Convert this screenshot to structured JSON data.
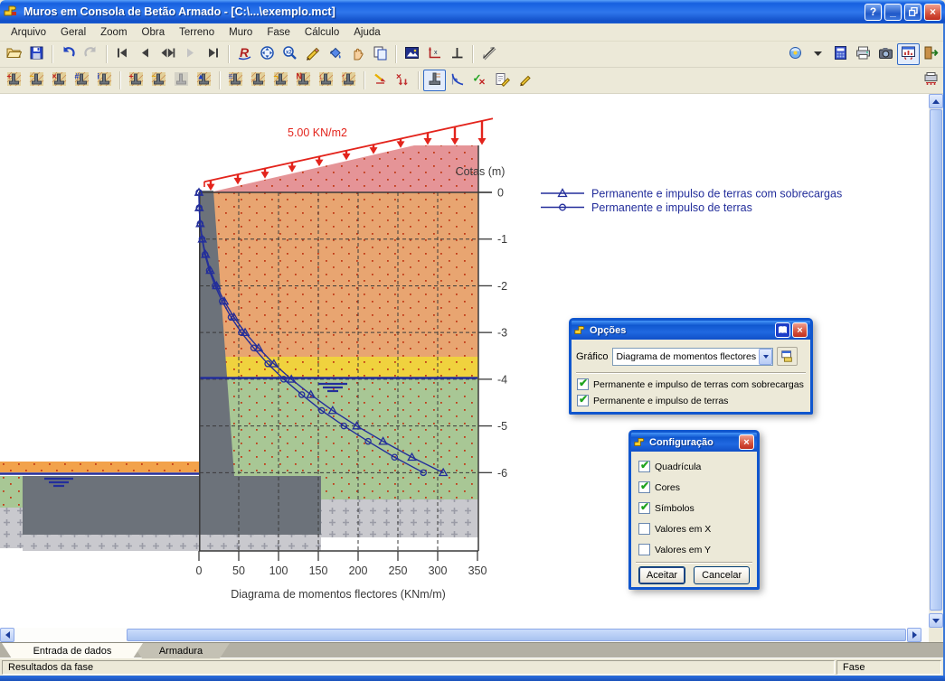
{
  "window": {
    "title": "Muros em Consola de Betão Armado - [C:\\...\\exemplo.mct]",
    "buttons": {
      "help": "?",
      "minimize": "_",
      "restore": "restore",
      "close": "×"
    }
  },
  "menu": {
    "items": [
      "Arquivo",
      "Geral",
      "Zoom",
      "Obra",
      "Terreno",
      "Muro",
      "Fase",
      "Cálculo",
      "Ajuda"
    ]
  },
  "toolbar_main": {
    "icons": [
      {
        "name": "open-file"
      },
      {
        "name": "save-file"
      },
      {
        "sep": true
      },
      {
        "name": "undo"
      },
      {
        "name": "redo",
        "disabled": true
      },
      {
        "sep": true
      },
      {
        "name": "nav-first"
      },
      {
        "name": "nav-prev"
      },
      {
        "name": "nav-phase"
      },
      {
        "name": "nav-next",
        "disabled": true
      },
      {
        "name": "nav-last"
      },
      {
        "sep": true
      },
      {
        "name": "redraw"
      },
      {
        "name": "zoom-extents"
      },
      {
        "name": "zoom-window"
      },
      {
        "name": "measure-pencil"
      },
      {
        "name": "fill-bucket"
      },
      {
        "name": "pan-hand"
      },
      {
        "name": "copy-view"
      },
      {
        "sep": true
      },
      {
        "name": "image-export"
      },
      {
        "name": "axes"
      },
      {
        "name": "orthogonal"
      },
      {
        "sep": true
      },
      {
        "name": "dimension"
      }
    ],
    "right_icons": [
      {
        "name": "render-options"
      },
      {
        "name": "dropdown-caret"
      },
      {
        "name": "calculator"
      },
      {
        "name": "print"
      },
      {
        "name": "snapshot-camera"
      },
      {
        "name": "phase-diagram-window",
        "pressed": true
      },
      {
        "name": "exit-door"
      }
    ]
  },
  "toolbar_wall": {
    "icons": [
      {
        "name": "wall-new",
        "badge": "+",
        "badge_color": "#C02020"
      },
      {
        "name": "wall-geometry",
        "badge": "~",
        "badge_color": "#E0A000"
      },
      {
        "name": "wall-delete",
        "badge": "×",
        "badge_color": "#C02020"
      },
      {
        "name": "wall-data",
        "badge": "#",
        "badge_color": "#2040C0"
      },
      {
        "name": "wall-materials",
        "badge": "i",
        "badge_color": "#2040C0"
      },
      {
        "sep": true
      },
      {
        "name": "phase-new",
        "badge": "+",
        "badge_color": "#C02020"
      },
      {
        "name": "phase-geometry",
        "badge": "~",
        "badge_color": "#E0A000"
      },
      {
        "name": "phase-disabled",
        "badge": "",
        "disabled": true
      },
      {
        "name": "phase-data",
        "badge": "▲",
        "badge_color": "#2040C0"
      },
      {
        "sep": true
      },
      {
        "name": "soil-strata",
        "badge": "≡",
        "badge_color": "#2040C0"
      },
      {
        "name": "soil-footing",
        "badge": "_",
        "badge_color": "#C05010"
      },
      {
        "name": "soil-berm",
        "badge": "¬",
        "badge_color": "#E0A000"
      },
      {
        "name": "loads-compass",
        "badge": "N",
        "badge_color": "#C02020"
      },
      {
        "name": "wall-push",
        "badge": "↓",
        "badge_color": "#C02020"
      },
      {
        "name": "wall-lift",
        "badge": "↑",
        "badge_color": "#C02020"
      },
      {
        "sep": true
      },
      {
        "name": "load-add"
      },
      {
        "name": "load-remove"
      },
      {
        "sep": true
      },
      {
        "name": "results-wall",
        "pressed": true
      },
      {
        "name": "results-diagram"
      },
      {
        "name": "results-check"
      },
      {
        "name": "results-annotate"
      },
      {
        "name": "results-edit"
      }
    ],
    "right_icons": [
      {
        "name": "print-diagram"
      }
    ]
  },
  "drawing": {
    "load_label": "5.00 KN/m2",
    "cotas_label": "Cotas (m)",
    "colors": {
      "slope_fill": "#E59497",
      "backfill_orange": "#E8A571",
      "front_orange": "#F2A24B",
      "yellow_layer": "#F0D23E",
      "green_layer": "#A8C795",
      "rock_hatch": "#C9C9CE",
      "wall_gray": "#6C727A",
      "water_navy": "#232E9B",
      "curve_navy": "#232E9B",
      "load_red": "#E3241C",
      "axis_dark": "#3A3A3A",
      "dot_red": "#C23A16",
      "hatch_plus": "#9A9BA6"
    }
  },
  "chart_data": {
    "type": "line",
    "title": "Diagrama de momentos flectores (KNm/m)",
    "xlabel": "Diagrama de momentos flectores (KNm/m)",
    "ylabel": "Cotas (m)",
    "x_ticks": [
      0,
      50,
      100,
      150,
      200,
      250,
      300,
      350
    ],
    "y_ticks": [
      0,
      -1,
      -2,
      -3,
      -4,
      -5,
      -6
    ],
    "xlim": [
      0,
      350
    ],
    "grid": true,
    "legend_position": "top-right",
    "depths": [
      0,
      0.33,
      0.67,
      1,
      1.33,
      1.67,
      2,
      2.33,
      2.67,
      3,
      3.33,
      3.67,
      4,
      4.33,
      4.67,
      5,
      5.33,
      5.67,
      6
    ],
    "series": [
      {
        "name": "Permanente e impulso de terras com sobrecargas",
        "marker": "triangle",
        "color": "#232E9B",
        "values": [
          0,
          0.3,
          1.6,
          4.2,
          8.3,
          14.2,
          22.1,
          31.8,
          43.9,
          58.0,
          74.9,
          94.2,
          116.1,
          140.6,
          168.0,
          198.3,
          231.4,
          267.6,
          307
        ]
      },
      {
        "name": "Permanente e impulso de terras",
        "marker": "circle",
        "color": "#232E9B",
        "values": [
          0,
          0.3,
          1.5,
          3.9,
          7.6,
          13.0,
          20.3,
          29.2,
          40.3,
          53.3,
          68.8,
          86.5,
          106.6,
          129.2,
          154.3,
          182.2,
          212.6,
          245.8,
          282
        ]
      }
    ]
  },
  "dialogs": {
    "opcoes": {
      "title": "Opções",
      "grafico_label": "Gráfico",
      "grafico_value": "Diagrama de momentos flectores",
      "checkboxes": [
        {
          "label": "Permanente e impulso de terras com sobrecargas",
          "checked": true
        },
        {
          "label": "Permanente e impulso de terras",
          "checked": true
        }
      ]
    },
    "configuracao": {
      "title": "Configuração",
      "checkboxes": [
        {
          "label": "Quadrícula",
          "checked": true
        },
        {
          "label": "Cores",
          "checked": true
        },
        {
          "label": "Símbolos",
          "checked": true
        },
        {
          "label": "Valores em X",
          "checked": false
        },
        {
          "label": "Valores em Y",
          "checked": false
        }
      ],
      "accept_label": "Aceitar",
      "cancel_label": "Cancelar"
    }
  },
  "tabs": [
    "Entrada de dados",
    "Armadura"
  ],
  "statusbar": {
    "left": "Resultados da fase",
    "right": "Fase"
  }
}
